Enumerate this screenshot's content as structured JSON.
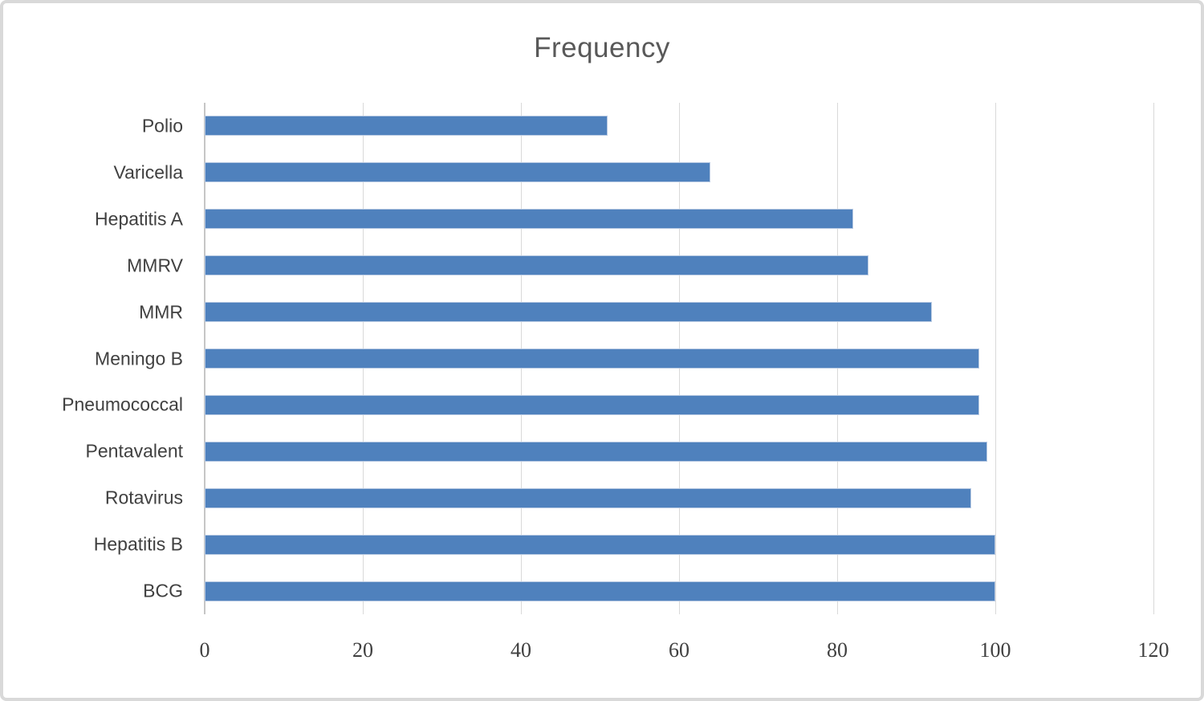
{
  "chart_data": {
    "type": "bar",
    "orientation": "horizontal",
    "title": "Frequency",
    "categories": [
      "Polio",
      "Varicella",
      "Hepatitis A",
      "MMRV",
      "MMR",
      "Meningo B",
      "Pneumococcal",
      "Pentavalent",
      "Rotavirus",
      "Hepatitis B",
      "BCG"
    ],
    "values": [
      51,
      64,
      82,
      84,
      92,
      98,
      98,
      99,
      97,
      100,
      100
    ],
    "xlabel": "",
    "ylabel": "",
    "xlim": [
      0,
      120
    ],
    "x_ticks": [
      0,
      20,
      40,
      60,
      80,
      100,
      120
    ],
    "grid": "vertical-only",
    "legend": "none",
    "bar_color": "#4F81BD",
    "bar_edge_color": "#B7C9E2",
    "gridline_color": "#D9D9D9",
    "title_color": "#595959",
    "label_color": "#404040",
    "frame_color": "#D9D9D9"
  }
}
